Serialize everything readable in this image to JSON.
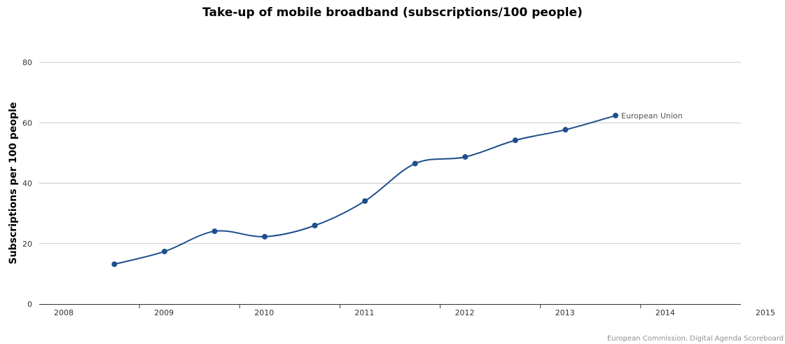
{
  "chart_data": {
    "type": "line",
    "title": "Take-up of mobile broadband (subscriptions/100 people)",
    "xlabel": "",
    "ylabel": "Subscriptions per 100 people",
    "x_ticks": [
      "2008",
      "2009",
      "2010",
      "2011",
      "2012",
      "2013",
      "2014",
      "2015"
    ],
    "xlim": [
      2008,
      2015
    ],
    "ylim": [
      0,
      80
    ],
    "y_ticks": [
      0,
      20,
      40,
      60,
      80
    ],
    "grid": true,
    "series": [
      {
        "name": "European Union",
        "color": "#1f4e8c",
        "points": [
          {
            "x": 2008.75,
            "y": 13.2
          },
          {
            "x": 2009.25,
            "y": 17.4
          },
          {
            "x": 2009.75,
            "y": 24.1
          },
          {
            "x": 2010.25,
            "y": 22.3
          },
          {
            "x": 2010.75,
            "y": 26.0
          },
          {
            "x": 2011.25,
            "y": 34.1
          },
          {
            "x": 2011.75,
            "y": 46.5
          },
          {
            "x": 2012.25,
            "y": 48.7
          },
          {
            "x": 2012.75,
            "y": 54.2
          },
          {
            "x": 2013.25,
            "y": 57.7
          },
          {
            "x": 2013.75,
            "y": 62.4
          }
        ]
      }
    ]
  },
  "credits": "European Commission, Digital Agenda Scoreboard"
}
